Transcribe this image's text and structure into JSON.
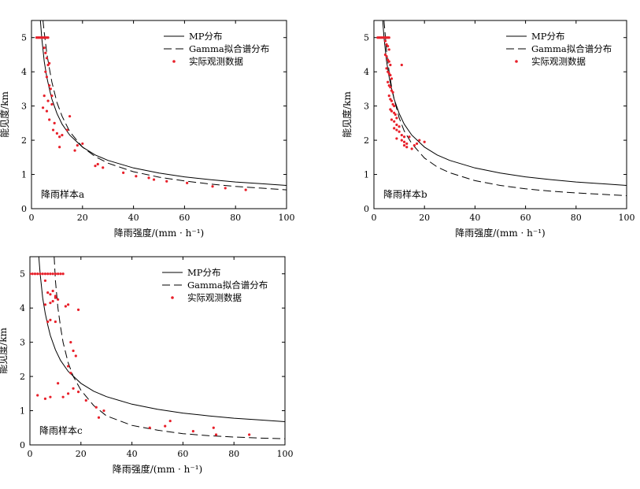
{
  "chart_data": [
    {
      "type": "line",
      "panel_label": "降雨样本a",
      "xlabel": "降雨强度/(mm · h⁻¹)",
      "ylabel": "能见度/km",
      "xlim": [
        0,
        100
      ],
      "ylim": [
        0,
        5.5
      ],
      "xticks": [
        0,
        20,
        40,
        60,
        80,
        100
      ],
      "yticks": [
        0,
        1,
        2,
        3,
        4,
        5
      ],
      "legend": [
        "MP分布",
        "Gamma拟合谱分布",
        "实际观测数据"
      ],
      "series": [
        {
          "name": "MP分布",
          "style": "solid",
          "x": [
            3.5,
            4,
            5,
            6,
            7,
            8,
            10,
            12,
            15,
            20,
            25,
            30,
            40,
            50,
            60,
            70,
            80,
            90,
            100
          ],
          "y": [
            5.5,
            5.0,
            4.3,
            3.85,
            3.5,
            3.2,
            2.78,
            2.47,
            2.15,
            1.8,
            1.57,
            1.41,
            1.19,
            1.04,
            0.93,
            0.85,
            0.78,
            0.73,
            0.68
          ]
        },
        {
          "name": "Gamma拟合谱分布",
          "style": "dashed",
          "x": [
            4.5,
            5,
            6,
            7,
            8,
            10,
            12,
            15,
            20,
            25,
            30,
            40,
            50,
            60,
            70,
            80,
            90,
            100
          ],
          "y": [
            5.5,
            5.15,
            4.55,
            4.1,
            3.7,
            3.1,
            2.7,
            2.25,
            1.8,
            1.52,
            1.33,
            1.08,
            0.92,
            0.81,
            0.72,
            0.65,
            0.6,
            0.55
          ]
        },
        {
          "name": "实际观测数据",
          "style": "points",
          "x": [
            2,
            2.5,
            3,
            3.5,
            4,
            4.5,
            5,
            5.5,
            6,
            6.5,
            5,
            5.5,
            6,
            6.5,
            7,
            5.5,
            6,
            7,
            7.5,
            8,
            5,
            6.5,
            8,
            4.5,
            6,
            7,
            9,
            8.5,
            10,
            11,
            12,
            14,
            15,
            11,
            17,
            18,
            20,
            25,
            26,
            28,
            36,
            41,
            46,
            48,
            53,
            61,
            71,
            76,
            84
          ],
          "y": [
            5,
            5,
            5,
            5,
            5,
            5,
            5,
            5,
            5,
            5,
            4.7,
            4.55,
            4.4,
            4.2,
            4.25,
            4.0,
            3.85,
            3.6,
            3.5,
            3.3,
            3.3,
            3.15,
            3.05,
            2.95,
            2.85,
            2.6,
            2.5,
            2.3,
            2.2,
            2.1,
            2.15,
            2.3,
            2.7,
            1.8,
            1.7,
            1.85,
            1.9,
            1.25,
            1.3,
            1.2,
            1.05,
            0.95,
            0.9,
            0.85,
            0.8,
            0.75,
            0.65,
            0.6,
            0.55
          ]
        }
      ]
    },
    {
      "type": "line",
      "panel_label": "降雨样本b",
      "xlabel": "降雨强度/(mm · h⁻¹)",
      "ylabel": "能见度/km",
      "xlim": [
        0,
        100
      ],
      "ylim": [
        0,
        5.5
      ],
      "xticks": [
        0,
        20,
        40,
        60,
        80,
        100
      ],
      "yticks": [
        0,
        1,
        2,
        3,
        4,
        5
      ],
      "legend": [
        "MP分布",
        "Gamma拟合谱分布",
        "实际观测数据"
      ],
      "series": [
        {
          "name": "MP分布",
          "style": "solid",
          "x": [
            3.5,
            4,
            5,
            6,
            7,
            8,
            10,
            12,
            15,
            20,
            25,
            30,
            40,
            50,
            60,
            70,
            80,
            90,
            100
          ],
          "y": [
            5.5,
            5.0,
            4.3,
            3.85,
            3.5,
            3.2,
            2.78,
            2.47,
            2.15,
            1.8,
            1.57,
            1.41,
            1.19,
            1.04,
            0.93,
            0.85,
            0.78,
            0.73,
            0.68
          ]
        },
        {
          "name": "Gamma拟合谱分布",
          "style": "dashed",
          "x": [
            4,
            5,
            6,
            7,
            8,
            10,
            12,
            15,
            20,
            25,
            30,
            40,
            50,
            60,
            70,
            80,
            90,
            100
          ],
          "y": [
            5.5,
            4.6,
            4.0,
            3.55,
            3.2,
            2.65,
            2.27,
            1.9,
            1.48,
            1.22,
            1.05,
            0.82,
            0.68,
            0.58,
            0.51,
            0.46,
            0.42,
            0.38
          ]
        },
        {
          "name": "实际观测数据",
          "style": "points",
          "x": [
            1.5,
            2,
            2.5,
            3,
            3.5,
            4,
            4.5,
            5,
            5.5,
            6,
            4.5,
            5,
            5.5,
            6,
            4.5,
            5,
            5.5,
            6,
            6.5,
            5,
            5.5,
            6,
            6.5,
            7,
            5.5,
            6,
            6.5,
            7,
            7.5,
            6,
            6.5,
            7,
            7.5,
            8,
            6.5,
            7,
            8,
            8.5,
            9,
            7,
            8,
            9,
            10,
            8,
            9,
            10,
            11,
            12,
            9,
            11,
            12,
            13,
            14,
            12,
            13,
            15,
            16,
            17,
            18,
            11,
            20
          ],
          "y": [
            5,
            5,
            5,
            5,
            5,
            5,
            5,
            5,
            5,
            5,
            4.9,
            4.8,
            4.75,
            4.65,
            4.5,
            4.45,
            4.35,
            4.3,
            4.2,
            4.1,
            4.0,
            3.95,
            3.9,
            3.8,
            3.7,
            3.6,
            3.55,
            3.45,
            3.4,
            3.3,
            3.2,
            3.15,
            3.05,
            3.0,
            2.9,
            2.85,
            2.8,
            2.75,
            2.65,
            2.6,
            2.55,
            2.45,
            2.4,
            2.35,
            2.3,
            2.25,
            2.15,
            2.1,
            2.05,
            2.0,
            1.95,
            1.9,
            2.1,
            1.85,
            1.8,
            1.75,
            1.85,
            1.9,
            2.0,
            4.2,
            1.95
          ]
        }
      ]
    },
    {
      "type": "line",
      "panel_label": "降雨样本c",
      "xlabel": "降雨强度/(mm · h⁻¹)",
      "ylabel": "能见度/km",
      "xlim": [
        0,
        100
      ],
      "ylim": [
        0,
        5.5
      ],
      "xticks": [
        0,
        20,
        40,
        60,
        80,
        100
      ],
      "yticks": [
        0,
        1,
        2,
        3,
        4,
        5
      ],
      "legend": [
        "MP分布",
        "Gamma拟合谱分布",
        "实际观测数据"
      ],
      "series": [
        {
          "name": "MP分布",
          "style": "solid",
          "x": [
            3.5,
            4,
            5,
            6,
            7,
            8,
            10,
            12,
            15,
            20,
            25,
            30,
            40,
            50,
            60,
            70,
            80,
            90,
            100
          ],
          "y": [
            5.5,
            5.0,
            4.3,
            3.85,
            3.5,
            3.2,
            2.78,
            2.47,
            2.15,
            1.8,
            1.57,
            1.41,
            1.19,
            1.04,
            0.93,
            0.85,
            0.78,
            0.73,
            0.68
          ]
        },
        {
          "name": "Gamma拟合谱分布",
          "style": "dashed",
          "x": [
            9.5,
            10,
            11,
            12,
            13,
            15,
            17,
            20,
            25,
            30,
            40,
            50,
            60,
            70,
            80,
            90,
            100
          ],
          "y": [
            5.5,
            4.8,
            4.0,
            3.45,
            3.0,
            2.4,
            2.0,
            1.6,
            1.15,
            0.85,
            0.57,
            0.43,
            0.33,
            0.27,
            0.23,
            0.2,
            0.18
          ]
        },
        {
          "name": "实际观测数据",
          "style": "points",
          "x": [
            0,
            1,
            2,
            3,
            4,
            5,
            6,
            7,
            8,
            9,
            10,
            11,
            12,
            13,
            6,
            7,
            8,
            9,
            10,
            11,
            6,
            8,
            9,
            10,
            14,
            15,
            19,
            7,
            8,
            10,
            16,
            17,
            18,
            15,
            16,
            3,
            6,
            8,
            11,
            13,
            15,
            17,
            19,
            22,
            26,
            29,
            27,
            47,
            53,
            55,
            64,
            72,
            73,
            86
          ],
          "y": [
            5,
            5,
            5,
            5,
            5,
            5,
            5,
            5,
            5,
            5,
            5,
            5,
            5,
            5,
            4.8,
            4.45,
            4.4,
            4.5,
            4.35,
            4.25,
            4.1,
            4.15,
            4.2,
            4.3,
            4.05,
            4.1,
            3.95,
            3.6,
            3.65,
            3.6,
            3.0,
            2.75,
            2.6,
            2.3,
            2.1,
            1.45,
            1.35,
            1.4,
            1.8,
            1.4,
            1.5,
            1.65,
            1.55,
            1.3,
            1.1,
            1.0,
            0.8,
            0.5,
            0.55,
            0.7,
            0.4,
            0.5,
            0.3,
            0.3
          ]
        }
      ]
    }
  ]
}
